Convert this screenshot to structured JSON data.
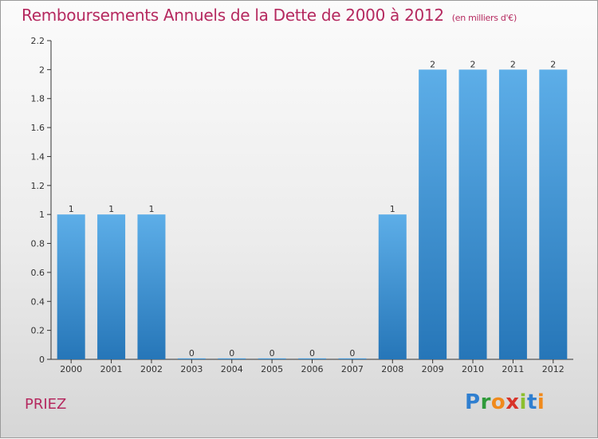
{
  "chart_data": {
    "type": "bar",
    "title": "Remboursements Annuels de la Dette de 2000 à 2012",
    "subtitle": "(en milliers d'€)",
    "categories": [
      "2000",
      "2001",
      "2002",
      "2003",
      "2004",
      "2005",
      "2006",
      "2007",
      "2008",
      "2009",
      "2010",
      "2011",
      "2012"
    ],
    "values": [
      1,
      1,
      1,
      0,
      0,
      0,
      0,
      0,
      1,
      2,
      2,
      2,
      2
    ],
    "data_labels": [
      "1",
      "1",
      "1",
      "0",
      "0",
      "0",
      "0",
      "0",
      "1",
      "2",
      "2",
      "2",
      "2"
    ],
    "yticks": [
      "0",
      "0.2",
      "0.4",
      "0.6",
      "0.8",
      "1",
      "1.2",
      "1.4",
      "1.6",
      "1.8",
      "2",
      "2.2"
    ],
    "ylim": [
      0,
      2.2
    ],
    "xlabel": "",
    "ylabel": "",
    "grid": false,
    "bar_color_top": "#5daee8",
    "bar_color_bottom": "#2676b8"
  },
  "footer": {
    "town": "PRIEZ",
    "logo_letters": [
      "P",
      "r",
      "o",
      "x",
      "i",
      "t",
      "i"
    ]
  },
  "colors": {
    "title": "#b5295f",
    "axis": "#333333"
  }
}
